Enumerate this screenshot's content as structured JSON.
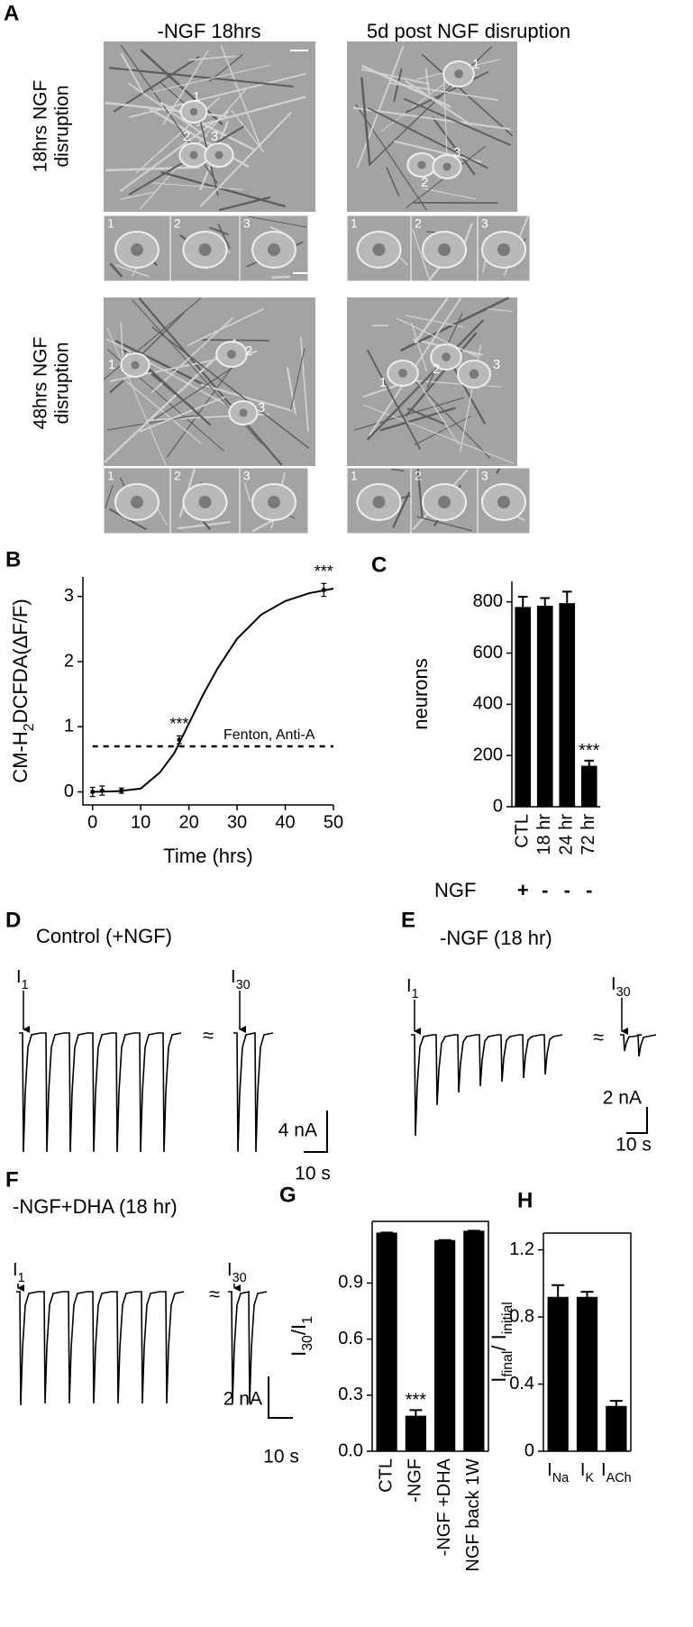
{
  "panel_a": {
    "label": "A",
    "column_titles": [
      "-NGF 18hrs",
      "5d post NGF disruption"
    ],
    "row_titles": [
      [
        "18hrs  NGF",
        "disruption"
      ],
      [
        "48hrs  NGF",
        "disruption"
      ]
    ],
    "cell_labels": [
      "1",
      "2",
      "3"
    ]
  },
  "traces": [
    {
      "label": "D",
      "title": "Control (+NGF)",
      "first_pulse": [
        "I",
        "1"
      ],
      "last_pulse": [
        "I",
        "30"
      ],
      "break": "≈",
      "scale_y": "4 nA",
      "scale_x": "10 s"
    },
    {
      "label": "E",
      "title": "-NGF (18 hr)",
      "first_pulse": [
        "I",
        "1"
      ],
      "last_pulse": [
        "I",
        "30"
      ],
      "break": "≈",
      "scale_y": "2 nA",
      "scale_x": "10 s"
    },
    {
      "label": "F",
      "title": "-NGF+DHA (18 hr)",
      "first_pulse": [
        "I",
        "1"
      ],
      "last_pulse": [
        "I",
        "30"
      ],
      "break": "≈",
      "scale_y": "2 nA",
      "scale_x": "10 s"
    }
  ],
  "chart_data": [
    {
      "type": "line",
      "panel_label": "B",
      "y_label": [
        "CM-H",
        "2",
        "DCFDA(ΔF/F)"
      ],
      "x_label": "Time (hrs)",
      "series": [
        {
          "color": "#000000",
          "x": [
            0,
            2,
            6,
            18,
            48
          ],
          "values": [
            0,
            0.02,
            0.02,
            0.8,
            3.1
          ],
          "errors": [
            0.07,
            0.07,
            0.04,
            0.06,
            0.1
          ],
          "significance": [
            null,
            null,
            null,
            "***",
            "***"
          ]
        }
      ],
      "fit": {
        "x": [
          0,
          5,
          10,
          14,
          17,
          20,
          23,
          26,
          30,
          35,
          40,
          45,
          50
        ],
        "values": [
          0,
          0.01,
          0.05,
          0.3,
          0.6,
          1.05,
          1.5,
          1.9,
          2.35,
          2.72,
          2.93,
          3.05,
          3.12
        ]
      },
      "reference_line": {
        "value": 0.7,
        "label": "Fenton, Anti-A"
      },
      "xlim": [
        -2,
        50
      ],
      "xticks": [
        0,
        10,
        20,
        30,
        40,
        50
      ],
      "ylim": [
        -0.2,
        3.3
      ],
      "yticks": [
        0,
        1,
        2,
        3
      ]
    },
    {
      "type": "bar",
      "panel_label": "C",
      "y_label": [
        "neurons"
      ],
      "color": "#000000",
      "categories": [
        "CTL",
        "18 hr",
        "24 hr",
        "72 hr"
      ],
      "values": [
        780,
        785,
        795,
        160
      ],
      "errors": [
        40,
        30,
        45,
        20
      ],
      "significance": [
        null,
        null,
        null,
        "***"
      ],
      "condition": {
        "name": "NGF",
        "values": [
          "+",
          "-",
          "-",
          "-"
        ]
      },
      "ylim": [
        0,
        880
      ],
      "yticks": [
        0,
        200,
        400,
        600,
        800
      ]
    },
    {
      "type": "bar",
      "panel_label": "G",
      "y_label": [
        "I",
        "30",
        "/I",
        "1"
      ],
      "color": "#000000",
      "frame": true,
      "categories": [
        "CTL",
        "-NGF",
        "-NGF +DHA",
        "NGF back 1W"
      ],
      "values": [
        1.17,
        0.19,
        1.13,
        1.18
      ],
      "errors": [
        0,
        0.03,
        0,
        0
      ],
      "significance": [
        null,
        "***",
        null,
        null
      ],
      "ylim": [
        0,
        1.23
      ],
      "yticks": [
        {
          "value": 0,
          "label": "0.0"
        },
        0.3,
        0.6,
        0.9
      ]
    },
    {
      "type": "bar",
      "panel_label": "H",
      "y_label": [
        "I",
        "final",
        "/ I",
        "initial"
      ],
      "color": "#000000",
      "frame": true,
      "category_prefix": "I",
      "categories": [
        "Na",
        "K",
        "ACh"
      ],
      "values": [
        0.92,
        0.92,
        0.27
      ],
      "errors": [
        0.07,
        0.03,
        0.03
      ],
      "ylim": [
        0,
        1.3
      ],
      "yticks": [
        0,
        0.4,
        0.8,
        1.2
      ]
    }
  ]
}
